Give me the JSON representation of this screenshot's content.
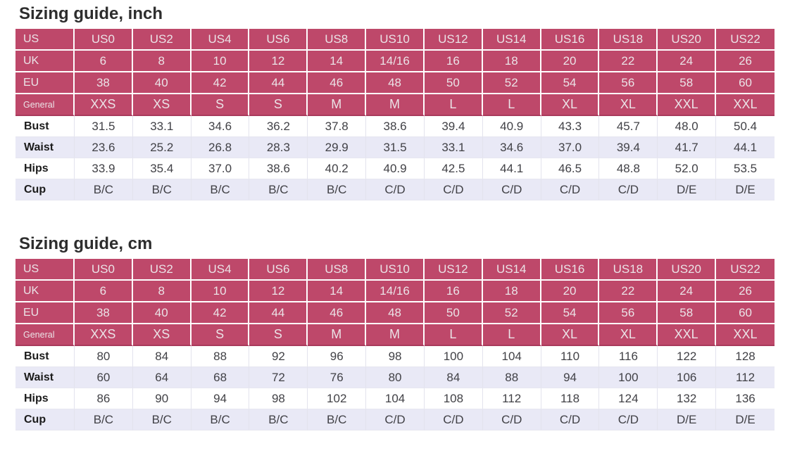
{
  "colors": {
    "header_bg": "#be486a",
    "header_text": "#ebe3e7",
    "header_divider": "#ffffff",
    "header_bottom_border": "#a93a5c",
    "row_alt_bg": "#e9e9f6",
    "row_bg": "#ffffff",
    "body_text": "#414146",
    "label_text": "#1b1b1b",
    "title_text": "#2d2d2d",
    "grid_line": "#e3e3ed"
  },
  "tables": [
    {
      "title": "Sizing guide, inch",
      "header_rows": [
        {
          "label": "US",
          "values": [
            "US0",
            "US2",
            "US4",
            "US6",
            "US8",
            "US10",
            "US12",
            "US14",
            "US16",
            "US18",
            "US20",
            "US22"
          ]
        },
        {
          "label": "UK",
          "values": [
            "6",
            "8",
            "10",
            "12",
            "14",
            "14/16",
            "16",
            "18",
            "20",
            "22",
            "24",
            "26"
          ]
        },
        {
          "label": "EU",
          "values": [
            "38",
            "40",
            "42",
            "44",
            "46",
            "48",
            "50",
            "52",
            "54",
            "56",
            "58",
            "60"
          ]
        },
        {
          "label": "General",
          "values": [
            "XXS",
            "XS",
            "S",
            "S",
            "M",
            "M",
            "L",
            "L",
            "XL",
            "XL",
            "XXL",
            "XXL"
          ]
        }
      ],
      "body_rows": [
        {
          "label": "Bust",
          "values": [
            "31.5",
            "33.1",
            "34.6",
            "36.2",
            "37.8",
            "38.6",
            "39.4",
            "40.9",
            "43.3",
            "45.7",
            "48.0",
            "50.4"
          ]
        },
        {
          "label": "Waist",
          "values": [
            "23.6",
            "25.2",
            "26.8",
            "28.3",
            "29.9",
            "31.5",
            "33.1",
            "34.6",
            "37.0",
            "39.4",
            "41.7",
            "44.1"
          ]
        },
        {
          "label": "Hips",
          "values": [
            "33.9",
            "35.4",
            "37.0",
            "38.6",
            "40.2",
            "40.9",
            "42.5",
            "44.1",
            "46.5",
            "48.8",
            "52.0",
            "53.5"
          ]
        },
        {
          "label": "Cup",
          "values": [
            "B/C",
            "B/C",
            "B/C",
            "B/C",
            "B/C",
            "C/D",
            "C/D",
            "C/D",
            "C/D",
            "C/D",
            "D/E",
            "D/E"
          ]
        }
      ]
    },
    {
      "title": "Sizing guide, cm",
      "header_rows": [
        {
          "label": "US",
          "values": [
            "US0",
            "US2",
            "US4",
            "US6",
            "US8",
            "US10",
            "US12",
            "US14",
            "US16",
            "US18",
            "US20",
            "US22"
          ]
        },
        {
          "label": "UK",
          "values": [
            "6",
            "8",
            "10",
            "12",
            "14",
            "14/16",
            "16",
            "18",
            "20",
            "22",
            "24",
            "26"
          ]
        },
        {
          "label": "EU",
          "values": [
            "38",
            "40",
            "42",
            "44",
            "46",
            "48",
            "50",
            "52",
            "54",
            "56",
            "58",
            "60"
          ]
        },
        {
          "label": "General",
          "values": [
            "XXS",
            "XS",
            "S",
            "S",
            "M",
            "M",
            "L",
            "L",
            "XL",
            "XL",
            "XXL",
            "XXL"
          ]
        }
      ],
      "body_rows": [
        {
          "label": "Bust",
          "values": [
            "80",
            "84",
            "88",
            "92",
            "96",
            "98",
            "100",
            "104",
            "110",
            "116",
            "122",
            "128"
          ]
        },
        {
          "label": "Waist",
          "values": [
            "60",
            "64",
            "68",
            "72",
            "76",
            "80",
            "84",
            "88",
            "94",
            "100",
            "106",
            "112"
          ]
        },
        {
          "label": "Hips",
          "values": [
            "86",
            "90",
            "94",
            "98",
            "102",
            "104",
            "108",
            "112",
            "118",
            "124",
            "132",
            "136"
          ]
        },
        {
          "label": "Cup",
          "values": [
            "B/C",
            "B/C",
            "B/C",
            "B/C",
            "B/C",
            "C/D",
            "C/D",
            "C/D",
            "C/D",
            "C/D",
            "D/E",
            "D/E"
          ]
        }
      ]
    }
  ]
}
